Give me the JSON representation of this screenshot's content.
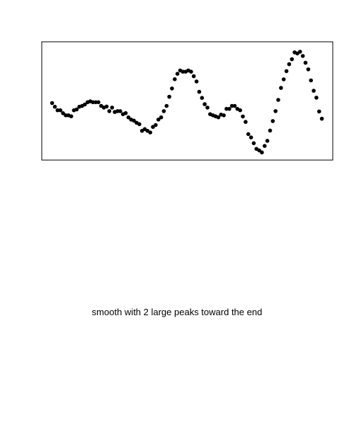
{
  "chart_data": {
    "type": "scatter",
    "title": "",
    "xlabel": "",
    "ylabel": "",
    "grid": false,
    "axes_visible": false,
    "point_color": "#000000",
    "x": [
      1,
      2,
      3,
      4,
      5,
      6,
      7,
      8,
      9,
      10,
      11,
      12,
      13,
      14,
      15,
      16,
      17,
      18,
      19,
      20,
      21,
      22,
      23,
      24,
      25,
      26,
      27,
      28,
      29,
      30,
      31,
      32,
      33,
      34,
      35,
      36,
      37,
      38,
      39,
      40,
      41,
      42,
      43,
      44,
      45,
      46,
      47,
      48,
      49,
      50,
      51,
      52,
      53,
      54,
      55,
      56,
      57,
      58,
      59,
      60,
      61,
      62,
      63,
      64,
      65,
      66,
      67,
      68,
      69,
      70,
      71,
      72,
      73,
      74,
      75,
      76,
      77,
      78,
      79,
      80,
      81,
      82,
      83,
      84,
      85,
      86,
      87,
      88,
      89,
      90,
      91,
      92,
      93,
      94,
      95,
      96,
      97,
      98,
      99,
      100
    ],
    "y": [
      0.48,
      0.446,
      0.413,
      0.413,
      0.386,
      0.366,
      0.366,
      0.357,
      0.413,
      0.421,
      0.446,
      0.454,
      0.467,
      0.488,
      0.496,
      0.488,
      0.488,
      0.488,
      0.454,
      0.438,
      0.448,
      0.405,
      0.438,
      0.397,
      0.405,
      0.405,
      0.377,
      0.387,
      0.347,
      0.327,
      0.317,
      0.297,
      0.284,
      0.222,
      0.238,
      0.222,
      0.207,
      0.258,
      0.276,
      0.327,
      0.347,
      0.405,
      0.454,
      0.539,
      0.616,
      0.702,
      0.752,
      0.783,
      0.772,
      0.772,
      0.783,
      0.772,
      0.73,
      0.681,
      0.585,
      0.528,
      0.47,
      0.438,
      0.377,
      0.366,
      0.357,
      0.348,
      0.373,
      0.366,
      0.426,
      0.426,
      0.454,
      0.454,
      0.426,
      0.413,
      0.356,
      0.305,
      0.192,
      0.161,
      0.107,
      0.054,
      0.04,
      0.021,
      0.082,
      0.129,
      0.225,
      0.313,
      0.405,
      0.51,
      0.621,
      0.701,
      0.777,
      0.842,
      0.888,
      0.952,
      0.942,
      0.958,
      0.918,
      0.855,
      0.794,
      0.691,
      0.595,
      0.53,
      0.402,
      0.335
    ],
    "xlim": [
      -2.8,
      104.0
    ],
    "ylim": [
      -0.05,
      1.05
    ]
  },
  "caption": "smooth with 2 large peaks toward the end"
}
